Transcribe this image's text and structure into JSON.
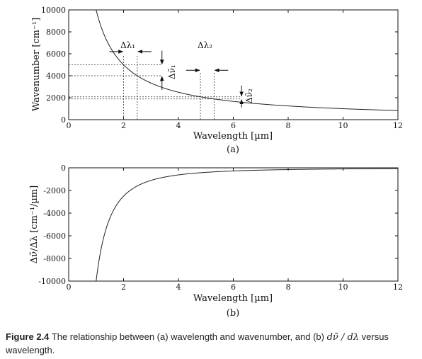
{
  "chart_data": [
    {
      "type": "line",
      "panel_label": "(a)",
      "xlabel": "Wavelength [µm]",
      "ylabel": "Wavenumber [cm⁻¹]",
      "xlim": [
        0,
        12
      ],
      "ylim": [
        0,
        10000
      ],
      "xticks": [
        "0",
        "2",
        "4",
        "6",
        "8",
        "10",
        "12"
      ],
      "yticks": [
        "0",
        "2000",
        "4000",
        "6000",
        "8000",
        "10000"
      ],
      "grid": false,
      "series": [
        {
          "function": "10000 / x",
          "x_range": [
            1.0,
            12
          ],
          "x": [
            1,
            2,
            2.5,
            3,
            4,
            4.8,
            5.3,
            6,
            8,
            10,
            12
          ],
          "y": [
            10000,
            5000,
            4000,
            3333,
            2500,
            2083,
            1887,
            1667,
            1250,
            1000,
            833
          ]
        }
      ],
      "annotations": {
        "delta_lambda_1": {
          "label": "Δλ₁",
          "x_from": 2.0,
          "x_to": 2.5
        },
        "delta_lambda_2": {
          "label": "Δλ₂",
          "x_from": 4.8,
          "x_to": 5.3
        },
        "delta_nu_1": {
          "label": "Δν̃₁",
          "y_from": 4000,
          "y_to": 5000
        },
        "delta_nu_2": {
          "label": "Δν̃₂",
          "y_from": 1887,
          "y_to": 2083
        }
      }
    },
    {
      "type": "line",
      "panel_label": "(b)",
      "xlabel": "Wavelength [µm]",
      "ylabel": "Δν̃/Δλ [cm⁻¹/µm]",
      "xlim": [
        0,
        12
      ],
      "ylim": [
        -10000,
        0
      ],
      "xticks": [
        "0",
        "2",
        "4",
        "6",
        "8",
        "10",
        "12"
      ],
      "yticks": [
        "0",
        "-2000",
        "-4000",
        "-6000",
        "-8000",
        "-10000"
      ],
      "grid": false,
      "series": [
        {
          "function": "-10000 / x^2",
          "x_range": [
            1.0,
            12
          ],
          "x": [
            1,
            1.5,
            2,
            3,
            4,
            6,
            8,
            10,
            12
          ],
          "y": [
            -10000,
            -4444,
            -2500,
            -1111,
            -625,
            -278,
            -156,
            -100,
            -69
          ]
        }
      ]
    }
  ],
  "caption": {
    "label": "Figure 2.4",
    "text_part1": " The relationship between (a) wavelength and wavenumber, and (b) ",
    "math": "dν̃ / dλ",
    "text_part2": " versus wavelength."
  }
}
